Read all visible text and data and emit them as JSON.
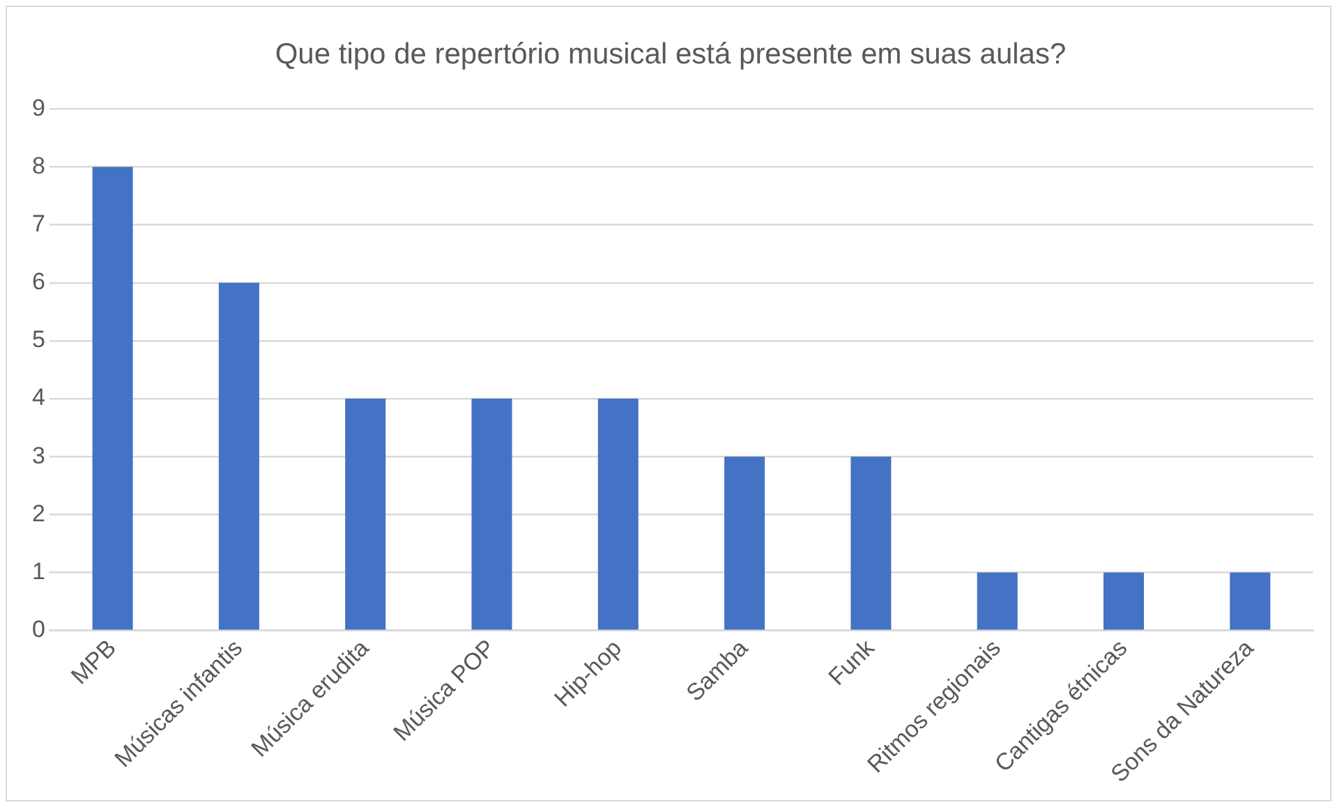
{
  "chart_data": {
    "type": "bar",
    "title": "Que tipo de repertório musical está presente em suas aulas?",
    "categories": [
      "MPB",
      "Músicas infantis",
      "Música erudita",
      "Música POP",
      "Hip-hop",
      "Samba",
      "Funk",
      "Ritmos regionais",
      "Cantigas étnicas",
      "Sons da Natureza"
    ],
    "values": [
      8,
      6,
      4,
      4,
      4,
      3,
      3,
      1,
      1,
      1
    ],
    "color": "#4472c4",
    "ylim": [
      0,
      9
    ],
    "yticks": [
      0,
      1,
      2,
      3,
      4,
      5,
      6,
      7,
      8,
      9
    ],
    "grid": "y",
    "legend": false
  }
}
